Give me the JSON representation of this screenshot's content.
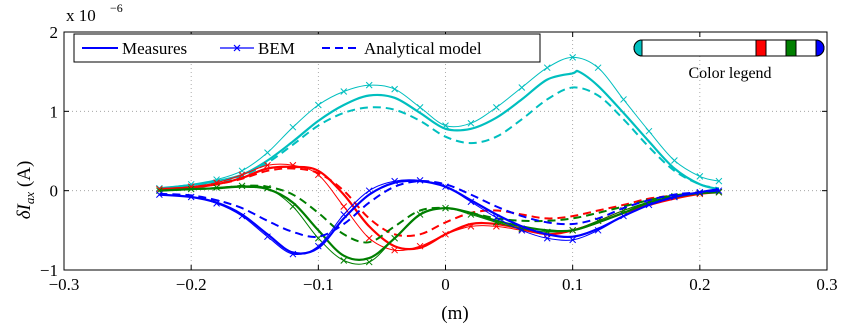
{
  "chart_data": {
    "type": "line",
    "ylabel_main": "δI",
    "ylabel_sub": "ax",
    "ylabel_unit": " (A)",
    "xlabel": "(m)",
    "exponent_label": "x 10",
    "exponent_power": "−6",
    "xlim": [
      -0.3,
      0.3
    ],
    "ylim": [
      -1,
      2
    ],
    "xticks": [
      -0.3,
      -0.2,
      -0.1,
      0,
      0.1,
      0.2,
      0.3
    ],
    "xtick_labels": [
      "−0.3",
      "−0.2",
      "−0.1",
      "0",
      "0.1",
      "0.2",
      "0.3"
    ],
    "yticks": [
      -1,
      0,
      1,
      2
    ],
    "ytick_labels": [
      "−1",
      "0",
      "1",
      "2"
    ],
    "grid": true,
    "legend": {
      "placement": "top-left",
      "entries": [
        {
          "label": "Measures",
          "style": "solid"
        },
        {
          "label": "BEM",
          "style": "solid-x"
        },
        {
          "label": "Analytical model",
          "style": "dashed"
        }
      ]
    },
    "color_legend": {
      "label": "Color legend",
      "placement": "top-right",
      "colors": [
        "#00bfbf",
        "#ff0000",
        "#007f00",
        "#0000ff"
      ]
    },
    "groups": [
      {
        "color": "#00bfbf",
        "measures": {
          "x": [
            -0.225,
            -0.2,
            -0.18,
            -0.16,
            -0.14,
            -0.12,
            -0.1,
            -0.08,
            -0.06,
            -0.04,
            -0.02,
            0,
            0.02,
            0.04,
            0.06,
            0.08,
            0.1,
            0.105,
            0.12,
            0.14,
            0.16,
            0.18,
            0.2,
            0.215
          ],
          "y": [
            0.03,
            0.07,
            0.12,
            0.2,
            0.38,
            0.62,
            0.88,
            1.08,
            1.2,
            1.17,
            0.98,
            0.78,
            0.78,
            0.92,
            1.15,
            1.4,
            1.48,
            1.5,
            1.32,
            0.98,
            0.62,
            0.28,
            0.08,
            0.02
          ]
        },
        "bem": {
          "x": [
            -0.225,
            -0.2,
            -0.18,
            -0.16,
            -0.14,
            -0.12,
            -0.1,
            -0.08,
            -0.06,
            -0.04,
            -0.02,
            0,
            0.02,
            0.04,
            0.06,
            0.08,
            0.1,
            0.12,
            0.14,
            0.16,
            0.18,
            0.2,
            0.215
          ],
          "y": [
            0.03,
            0.08,
            0.14,
            0.25,
            0.48,
            0.8,
            1.08,
            1.25,
            1.33,
            1.28,
            1.05,
            0.82,
            0.85,
            1.05,
            1.3,
            1.55,
            1.68,
            1.55,
            1.15,
            0.75,
            0.38,
            0.18,
            0.12
          ]
        },
        "analytical": {
          "x": [
            -0.225,
            -0.2,
            -0.18,
            -0.16,
            -0.14,
            -0.12,
            -0.1,
            -0.08,
            -0.06,
            -0.04,
            -0.02,
            0,
            0.02,
            0.04,
            0.06,
            0.08,
            0.1,
            0.12,
            0.14,
            0.16,
            0.18,
            0.2,
            0.215
          ],
          "y": [
            0.02,
            0.05,
            0.1,
            0.18,
            0.35,
            0.58,
            0.82,
            0.98,
            1.05,
            1.02,
            0.88,
            0.68,
            0.6,
            0.68,
            0.9,
            1.15,
            1.3,
            1.2,
            0.9,
            0.55,
            0.25,
            0.08,
            0.03
          ]
        }
      },
      {
        "color": "#ff0000",
        "measures": {
          "x": [
            -0.225,
            -0.2,
            -0.18,
            -0.16,
            -0.14,
            -0.12,
            -0.1,
            -0.08,
            -0.06,
            -0.04,
            -0.02,
            0,
            0.02,
            0.04,
            0.06,
            0.08,
            0.1,
            0.12,
            0.14,
            0.16,
            0.18,
            0.2,
            0.215
          ],
          "y": [
            0.02,
            0.04,
            0.08,
            0.16,
            0.28,
            0.3,
            0.25,
            -0.05,
            -0.45,
            -0.7,
            -0.72,
            -0.55,
            -0.42,
            -0.42,
            -0.48,
            -0.55,
            -0.5,
            -0.4,
            -0.28,
            -0.18,
            -0.1,
            -0.04,
            -0.02
          ]
        },
        "bem": {
          "x": [
            -0.225,
            -0.2,
            -0.18,
            -0.16,
            -0.14,
            -0.12,
            -0.1,
            -0.08,
            -0.06,
            -0.04,
            -0.02,
            0,
            0.02,
            0.04,
            0.06,
            0.08,
            0.1,
            0.12,
            0.14,
            0.16,
            0.18,
            0.2,
            0.215
          ],
          "y": [
            0.02,
            0.05,
            0.1,
            0.2,
            0.32,
            0.32,
            0.2,
            -0.2,
            -0.6,
            -0.75,
            -0.7,
            -0.55,
            -0.45,
            -0.45,
            -0.5,
            -0.55,
            -0.5,
            -0.38,
            -0.25,
            -0.15,
            -0.08,
            -0.04,
            -0.02
          ]
        },
        "analytical": {
          "x": [
            -0.225,
            -0.2,
            -0.18,
            -0.16,
            -0.14,
            -0.12,
            -0.1,
            -0.08,
            -0.06,
            -0.04,
            -0.02,
            0,
            0.02,
            0.04,
            0.06,
            0.08,
            0.1,
            0.12,
            0.14,
            0.16,
            0.18,
            0.2,
            0.215
          ],
          "y": [
            0.02,
            0.04,
            0.08,
            0.15,
            0.25,
            0.28,
            0.22,
            0.0,
            -0.35,
            -0.55,
            -0.55,
            -0.4,
            -0.28,
            -0.25,
            -0.3,
            -0.35,
            -0.32,
            -0.25,
            -0.18,
            -0.1,
            -0.06,
            -0.03,
            -0.02
          ]
        }
      },
      {
        "color": "#007f00",
        "measures": {
          "x": [
            -0.225,
            -0.2,
            -0.18,
            -0.16,
            -0.14,
            -0.12,
            -0.1,
            -0.08,
            -0.06,
            -0.04,
            -0.02,
            0,
            0.02,
            0.04,
            0.06,
            0.08,
            0.1,
            0.12,
            0.14,
            0.16,
            0.18,
            0.2,
            0.215
          ],
          "y": [
            0.0,
            0.02,
            0.03,
            0.05,
            0.02,
            -0.15,
            -0.5,
            -0.82,
            -0.85,
            -0.6,
            -0.3,
            -0.22,
            -0.28,
            -0.38,
            -0.45,
            -0.5,
            -0.5,
            -0.4,
            -0.28,
            -0.15,
            -0.08,
            -0.03,
            -0.02
          ]
        },
        "bem": {
          "x": [
            -0.225,
            -0.2,
            -0.18,
            -0.16,
            -0.14,
            -0.12,
            -0.1,
            -0.08,
            -0.06,
            -0.04,
            -0.02,
            0,
            0.02,
            0.04,
            0.06,
            0.08,
            0.1,
            0.12,
            0.14,
            0.16,
            0.18,
            0.2,
            0.215
          ],
          "y": [
            0.0,
            0.02,
            0.04,
            0.06,
            0.03,
            -0.2,
            -0.6,
            -0.88,
            -0.9,
            -0.6,
            -0.3,
            -0.22,
            -0.3,
            -0.4,
            -0.48,
            -0.52,
            -0.5,
            -0.38,
            -0.25,
            -0.14,
            -0.07,
            -0.03,
            -0.02
          ]
        },
        "analytical": {
          "x": [
            -0.225,
            -0.2,
            -0.18,
            -0.16,
            -0.14,
            -0.12,
            -0.1,
            -0.08,
            -0.06,
            -0.04,
            -0.02,
            0,
            0.02,
            0.04,
            0.06,
            0.08,
            0.1,
            0.12,
            0.14,
            0.16,
            0.18,
            0.2,
            0.215
          ],
          "y": [
            0.0,
            0.02,
            0.03,
            0.06,
            0.05,
            -0.05,
            -0.28,
            -0.55,
            -0.65,
            -0.45,
            -0.25,
            -0.22,
            -0.28,
            -0.35,
            -0.38,
            -0.38,
            -0.35,
            -0.28,
            -0.2,
            -0.12,
            -0.06,
            -0.03,
            -0.02
          ]
        }
      },
      {
        "color": "#0000ff",
        "measures": {
          "x": [
            -0.225,
            -0.2,
            -0.18,
            -0.16,
            -0.14,
            -0.12,
            -0.1,
            -0.08,
            -0.06,
            -0.04,
            -0.02,
            0,
            0.02,
            0.04,
            0.06,
            0.08,
            0.1,
            0.12,
            0.14,
            0.16,
            0.18,
            0.2,
            0.215
          ],
          "y": [
            -0.05,
            -0.08,
            -0.15,
            -0.3,
            -0.55,
            -0.78,
            -0.72,
            -0.35,
            -0.05,
            0.1,
            0.12,
            0.05,
            -0.12,
            -0.3,
            -0.45,
            -0.55,
            -0.58,
            -0.48,
            -0.32,
            -0.18,
            -0.08,
            -0.02,
            0.02
          ]
        },
        "bem": {
          "x": [
            -0.225,
            -0.2,
            -0.18,
            -0.16,
            -0.14,
            -0.12,
            -0.1,
            -0.08,
            -0.06,
            -0.04,
            -0.02,
            0,
            0.02,
            0.04,
            0.06,
            0.08,
            0.1,
            0.12,
            0.14,
            0.16,
            0.18,
            0.2,
            0.215
          ],
          "y": [
            -0.05,
            -0.08,
            -0.16,
            -0.32,
            -0.58,
            -0.8,
            -0.7,
            -0.3,
            0.0,
            0.12,
            0.13,
            0.05,
            -0.14,
            -0.34,
            -0.5,
            -0.6,
            -0.62,
            -0.5,
            -0.32,
            -0.18,
            -0.08,
            -0.02,
            0.0
          ]
        },
        "analytical": {
          "x": [
            -0.225,
            -0.2,
            -0.18,
            -0.16,
            -0.14,
            -0.12,
            -0.1,
            -0.08,
            -0.06,
            -0.04,
            -0.02,
            0,
            0.02,
            0.04,
            0.06,
            0.08,
            0.1,
            0.12,
            0.14,
            0.16,
            0.18,
            0.2,
            0.215
          ],
          "y": [
            -0.04,
            -0.06,
            -0.12,
            -0.22,
            -0.38,
            -0.52,
            -0.58,
            -0.42,
            -0.15,
            0.05,
            0.12,
            0.08,
            -0.05,
            -0.2,
            -0.32,
            -0.4,
            -0.42,
            -0.35,
            -0.22,
            -0.12,
            -0.05,
            -0.02,
            0.0
          ]
        }
      }
    ]
  }
}
